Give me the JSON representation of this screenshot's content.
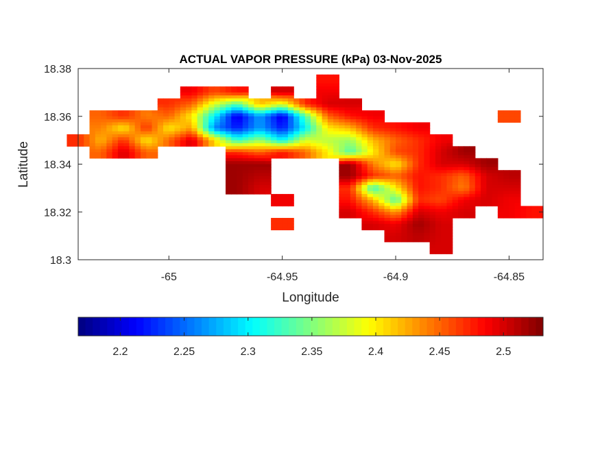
{
  "chart_data": {
    "type": "heatmap",
    "title": "ACTUAL VAPOR PRESSURE (kPa) 03-Nov-2025",
    "xlabel": "Longitude",
    "ylabel": "Latitude",
    "xlim": [
      -65.04,
      -64.835
    ],
    "ylim": [
      18.3,
      18.38
    ],
    "xticks": [
      -65,
      -64.95,
      -64.9,
      -64.85
    ],
    "xtick_labels": [
      "-65",
      "-64.95",
      "-64.9",
      "-64.85"
    ],
    "yticks": [
      18.3,
      18.32,
      18.34,
      18.36,
      18.38
    ],
    "ytick_labels": [
      "18.3",
      "18.32",
      "18.34",
      "18.36",
      "18.38"
    ],
    "grid": false,
    "colormap": "jet",
    "colorbar": {
      "placement": "bottom",
      "clim": [
        2.167,
        2.531
      ],
      "ticks": [
        2.2,
        2.25,
        2.3,
        2.35,
        2.4,
        2.45,
        2.5
      ],
      "tick_labels": [
        "2.2",
        "2.25",
        "2.3",
        "2.35",
        "2.4",
        "2.45",
        "2.5"
      ]
    },
    "lon": [
      -65.04,
      -65.03,
      -65.02,
      -65.01,
      -65.0,
      -64.99,
      -64.98,
      -64.97,
      -64.96,
      -64.95,
      -64.94,
      -64.93,
      -64.92,
      -64.91,
      -64.9,
      -64.89,
      -64.88,
      -64.87,
      -64.86,
      -64.85,
      -64.84
    ],
    "lat": [
      18.375,
      18.37,
      18.365,
      18.36,
      18.355,
      18.35,
      18.345,
      18.34,
      18.335,
      18.33,
      18.325,
      18.32,
      18.315,
      18.31,
      18.305
    ],
    "values": [
      [
        null,
        null,
        null,
        null,
        null,
        null,
        null,
        null,
        null,
        null,
        null,
        2.48,
        null,
        null,
        null,
        null,
        null,
        null,
        null,
        null,
        null
      ],
      [
        null,
        null,
        null,
        null,
        null,
        2.49,
        2.46,
        2.48,
        null,
        2.5,
        null,
        2.49,
        null,
        null,
        null,
        null,
        null,
        null,
        null,
        null,
        null
      ],
      [
        null,
        null,
        null,
        null,
        2.47,
        2.45,
        2.38,
        2.33,
        2.42,
        2.38,
        2.47,
        2.5,
        2.5,
        null,
        null,
        null,
        null,
        null,
        null,
        null,
        null
      ],
      [
        null,
        2.45,
        2.47,
        2.44,
        2.45,
        2.4,
        2.3,
        2.2,
        2.27,
        2.2,
        2.33,
        2.45,
        2.48,
        2.49,
        null,
        null,
        null,
        null,
        null,
        2.46,
        null
      ],
      [
        null,
        2.44,
        2.4,
        2.47,
        2.4,
        2.43,
        2.26,
        2.22,
        2.27,
        2.22,
        2.3,
        2.4,
        2.42,
        2.47,
        2.48,
        2.49,
        null,
        null,
        null,
        null,
        null
      ],
      [
        2.47,
        2.42,
        2.47,
        2.4,
        2.45,
        2.5,
        2.41,
        2.32,
        2.36,
        2.3,
        2.38,
        2.37,
        2.36,
        2.42,
        2.45,
        2.47,
        2.49,
        null,
        null,
        null,
        null
      ],
      [
        null,
        2.45,
        2.5,
        2.45,
        null,
        null,
        null,
        2.47,
        2.45,
        2.48,
        2.45,
        2.4,
        2.33,
        2.4,
        2.46,
        2.47,
        2.5,
        2.52,
        null,
        null,
        null
      ],
      [
        null,
        null,
        null,
        null,
        null,
        null,
        null,
        2.52,
        2.52,
        null,
        null,
        null,
        2.52,
        2.44,
        2.4,
        2.47,
        2.5,
        2.5,
        2.52,
        null,
        null
      ],
      [
        null,
        null,
        null,
        null,
        null,
        null,
        null,
        2.52,
        2.51,
        null,
        null,
        null,
        2.52,
        2.47,
        2.45,
        2.48,
        2.47,
        2.45,
        2.5,
        2.51,
        null
      ],
      [
        null,
        null,
        null,
        null,
        null,
        null,
        null,
        2.52,
        2.5,
        null,
        null,
        null,
        2.47,
        2.32,
        2.4,
        2.48,
        2.47,
        2.44,
        2.5,
        2.5,
        null
      ],
      [
        null,
        null,
        null,
        null,
        null,
        null,
        null,
        null,
        null,
        2.49,
        null,
        null,
        2.48,
        2.42,
        2.33,
        2.47,
        2.46,
        2.49,
        2.5,
        2.49,
        null
      ],
      [
        null,
        null,
        null,
        null,
        null,
        null,
        null,
        null,
        null,
        null,
        null,
        null,
        2.5,
        2.47,
        2.43,
        2.5,
        2.49,
        2.5,
        null,
        2.49,
        2.48
      ],
      [
        null,
        null,
        null,
        null,
        null,
        null,
        null,
        null,
        null,
        2.47,
        null,
        null,
        null,
        2.5,
        2.49,
        2.52,
        2.5,
        null,
        null,
        null,
        null
      ],
      [
        null,
        null,
        null,
        null,
        null,
        null,
        null,
        null,
        null,
        null,
        null,
        null,
        null,
        null,
        2.5,
        2.51,
        2.5,
        null,
        null,
        null,
        null
      ],
      [
        null,
        null,
        null,
        null,
        null,
        null,
        null,
        null,
        null,
        null,
        null,
        null,
        null,
        null,
        null,
        null,
        2.5,
        null,
        null,
        null,
        null
      ]
    ]
  }
}
